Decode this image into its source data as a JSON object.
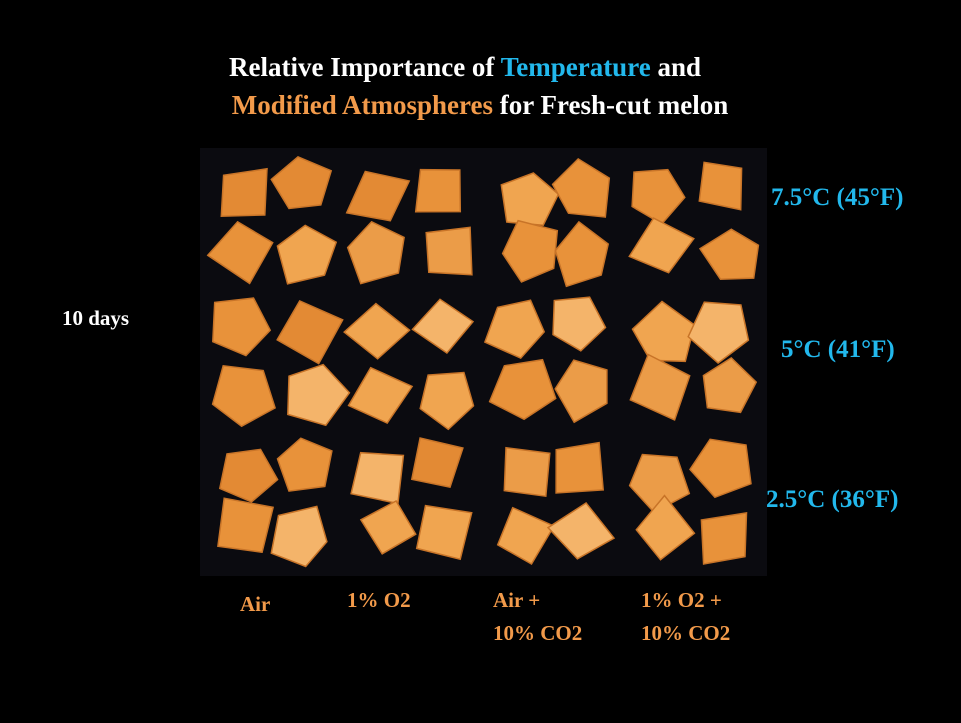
{
  "title": {
    "line1": [
      "Relative Importance of",
      "Temperature",
      "and"
    ],
    "line2": [
      "Modified Atmospheres",
      "for Fresh-cut melon"
    ]
  },
  "duration": "10 days",
  "temperatures": [
    "7.5°C (45°F)",
    "5°C (41°F)",
    "2.5°C (36°F)"
  ],
  "atmospheres": [
    [
      "Air"
    ],
    [
      "1% O2"
    ],
    [
      "Air +",
      "10% CO2"
    ],
    [
      "1% O2 +",
      "10% CO2"
    ]
  ]
}
